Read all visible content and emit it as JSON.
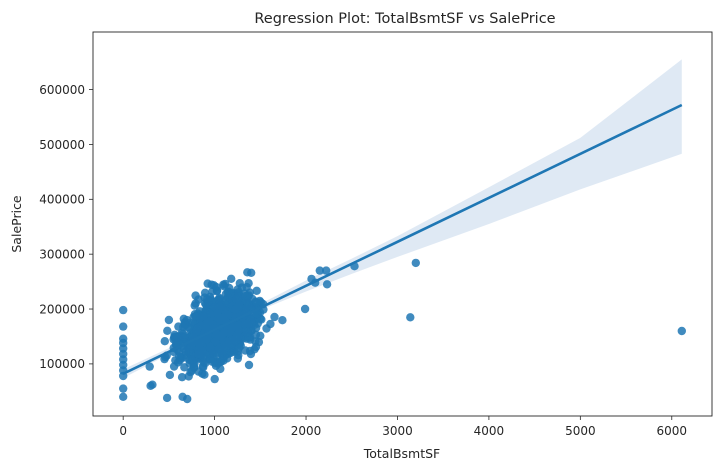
{
  "chart_data": {
    "type": "scatter",
    "title": "Regression Plot: TotalBsmtSF vs SalePrice",
    "xlabel": "TotalBsmtSF",
    "ylabel": "SalePrice",
    "xlim": [
      -330,
      6440
    ],
    "ylim": [
      5000,
      705000
    ],
    "xticks": [
      0,
      1000,
      2000,
      3000,
      4000,
      5000,
      6000
    ],
    "yticks": [
      100000,
      200000,
      300000,
      400000,
      500000,
      600000
    ],
    "xtick_labels": [
      "0",
      "1000",
      "2000",
      "3000",
      "4000",
      "5000",
      "6000"
    ],
    "ytick_labels": [
      "100000",
      "200000",
      "300000",
      "400000",
      "500000",
      "600000"
    ],
    "grid": false,
    "point_color": "#1f77b4",
    "line_color": "#1f77b4",
    "band_color": "#dbe7f3",
    "regression_line": {
      "x": [
        0,
        6110
      ],
      "y": [
        82000,
        572000
      ]
    },
    "confidence_band": {
      "x": [
        0,
        800,
        1000,
        1200,
        1600,
        2000,
        2500,
        3000,
        4000,
        5000,
        6110
      ],
      "lower": [
        74000,
        144000,
        160000,
        175000,
        205000,
        232000,
        264000,
        295000,
        355000,
        418000,
        483000
      ],
      "upper": [
        90000,
        152000,
        168000,
        185000,
        218000,
        252000,
        292000,
        333000,
        422000,
        512000,
        655000
      ]
    },
    "outliers": {
      "x": [
        0,
        0,
        0,
        0,
        0,
        0,
        0,
        0,
        0,
        0,
        0,
        0,
        2530,
        3140,
        3200,
        6110,
        2220,
        2150,
        2230,
        2100,
        2060,
        1990,
        300,
        320,
        290,
        500,
        480,
        650,
        700
      ],
      "y": [
        40000,
        55000,
        78000,
        88000,
        98000,
        108000,
        118000,
        128000,
        138000,
        146000,
        168000,
        198000,
        278000,
        185000,
        284000,
        160000,
        270000,
        270000,
        245000,
        248000,
        255000,
        200000,
        60000,
        62000,
        95000,
        180000,
        38000,
        40000,
        36000
      ]
    },
    "cluster_seed": 12345,
    "cluster_count": 1000
  }
}
